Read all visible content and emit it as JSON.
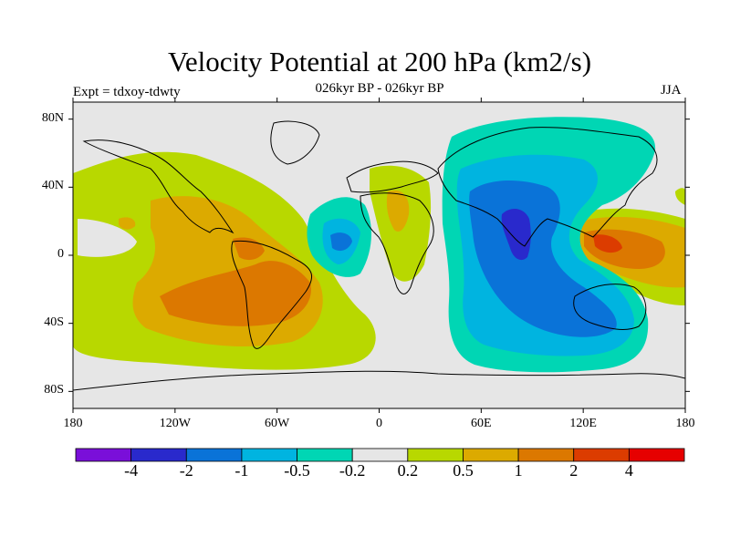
{
  "title": "Velocity Potential at 200 hPa (km2/s)",
  "subtitle": "026kyr BP - 026kyr BP",
  "left_label": "Expt = tdxoy-tdwty",
  "right_label": "JJA",
  "colors": {
    "background": "#e6e6e6",
    "coast": "#000000"
  },
  "chart_data": {
    "type": "heatmap",
    "x_ticks": [
      "180",
      "120W",
      "60W",
      "0",
      "60E",
      "120E",
      "180"
    ],
    "y_ticks": [
      "80N",
      "40N",
      "0",
      "40S",
      "80S"
    ],
    "colorbar": {
      "labels": [
        "-4",
        "-2",
        "-1",
        "-0.5",
        "-0.2",
        "0.2",
        "0.5",
        "1",
        "2",
        "4"
      ],
      "colors": [
        "#7a0fd9",
        "#2929cc",
        "#0a73d8",
        "#00b4e0",
        "#00d6b4",
        "#e6e6e6",
        "#b8d800",
        "#dcaa00",
        "#dc7800",
        "#dc3c00",
        "#e60000"
      ]
    },
    "xlim": [
      -180,
      180
    ],
    "ylim": [
      -90,
      90
    ]
  }
}
